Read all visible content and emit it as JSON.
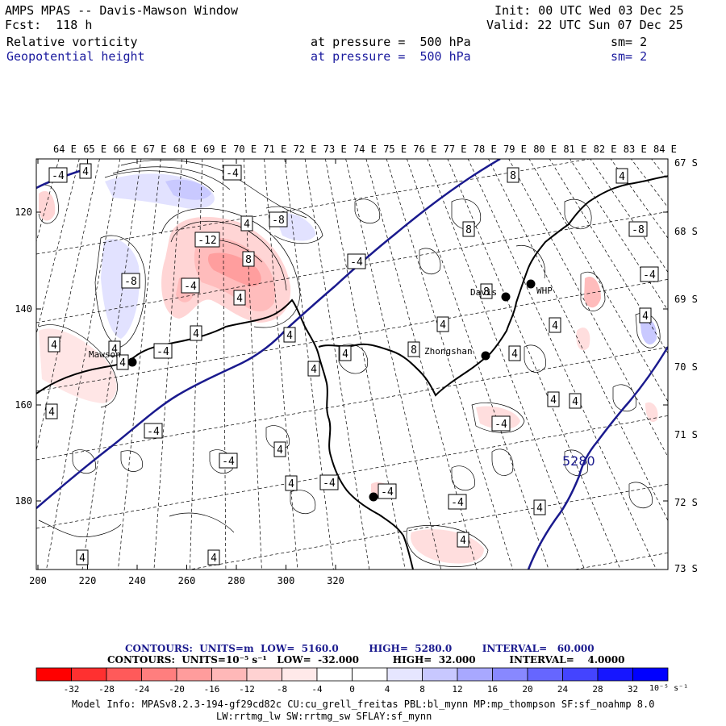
{
  "header": {
    "title": "AMPS MPAS -- Davis-Mawson Window",
    "fcst": "Fcst:  118 h",
    "init": "Init: 00 UTC Wed 03 Dec 25",
    "valid": "Valid: 22 UTC Sun 07 Dec 25",
    "field1": {
      "name": "Relative vorticity",
      "pressure": "at pressure =  500 hPa",
      "sm": "sm= 2"
    },
    "field2": {
      "name": "Geopotential height",
      "pressure": "at pressure =  500 hPa",
      "sm": "sm= 2"
    }
  },
  "map": {
    "lon_labels": [
      "64 E",
      "65 E",
      "66 E",
      "67 E",
      "68 E",
      "69 E",
      "70 E",
      "71 E",
      "72 E",
      "73 E",
      "74 E",
      "75 E",
      "76 E",
      "77 E",
      "78 E",
      "79 E",
      "80 E",
      "81 E",
      "82 E",
      "83 E",
      "84 E"
    ],
    "lat_labels": [
      "67 S",
      "68 S",
      "69 S",
      "70 S",
      "71 S",
      "72 S",
      "73 S"
    ],
    "x_ticks": [
      "200",
      "220",
      "240",
      "260",
      "280",
      "300",
      "320"
    ],
    "y_ticks": [
      "120",
      "140",
      "160",
      "180"
    ],
    "stations": [
      {
        "name": "Mawson"
      },
      {
        "name": "Davis"
      },
      {
        "name": "WHP"
      },
      {
        "name": "Zhongshan"
      }
    ],
    "height_contour_label": "5280",
    "vort_labels": [
      "-4",
      "4",
      "-4",
      "8",
      "4",
      "4",
      "-8",
      "-12",
      "8",
      "-8",
      "8",
      "-8",
      "-4",
      "-4",
      "-4",
      "4",
      "4",
      "8",
      "4",
      "4",
      "4",
      "-4",
      "4",
      "4",
      "4",
      "8",
      "4",
      "4",
      "4",
      "-4",
      "4",
      "4",
      "-4",
      "4",
      "-4",
      "4",
      "-4",
      "4",
      "-4",
      "4",
      "4",
      "4",
      "4",
      "-4",
      "4"
    ]
  },
  "captions": {
    "line1_label": "CONTOURS:  UNITS=m  LOW=  5160.0         HIGH=  5280.0         INTERVAL=   60.000",
    "line2_label": "CONTOURS:  UNITS=10⁻⁵ s⁻¹   LOW=  -32.000          HIGH=  32.000          INTERVAL=    4.0000"
  },
  "colorbar": {
    "ticks": [
      "-32",
      "-28",
      "-24",
      "-20",
      "-16",
      "-12",
      "-8",
      "-4",
      "0",
      "4",
      "8",
      "12",
      "16",
      "20",
      "24",
      "28",
      "32"
    ],
    "units": "10⁻⁵ s⁻¹",
    "colors": [
      "#ff0000",
      "#ff3030",
      "#ff5a5a",
      "#ff7e7e",
      "#ff9c9c",
      "#ffb8b8",
      "#ffd2d2",
      "#ffe9e9",
      "#ffffff",
      "#ffffff",
      "#e6e6ff",
      "#c8c8ff",
      "#a8a8ff",
      "#8888ff",
      "#6666ff",
      "#4444ff",
      "#1616ff",
      "#0000ff"
    ]
  },
  "model_info": {
    "line1": "Model Info: MPASv8.2.3-194-gf29cd82c CU:cu_grell_freitas PBL:bl_mynn MP:mp_thompson SF:sf_noahmp 8.0",
    "line2": "LW:rrtmg_lw SW:rrtmg_sw SFLAY:sf_mynn"
  }
}
